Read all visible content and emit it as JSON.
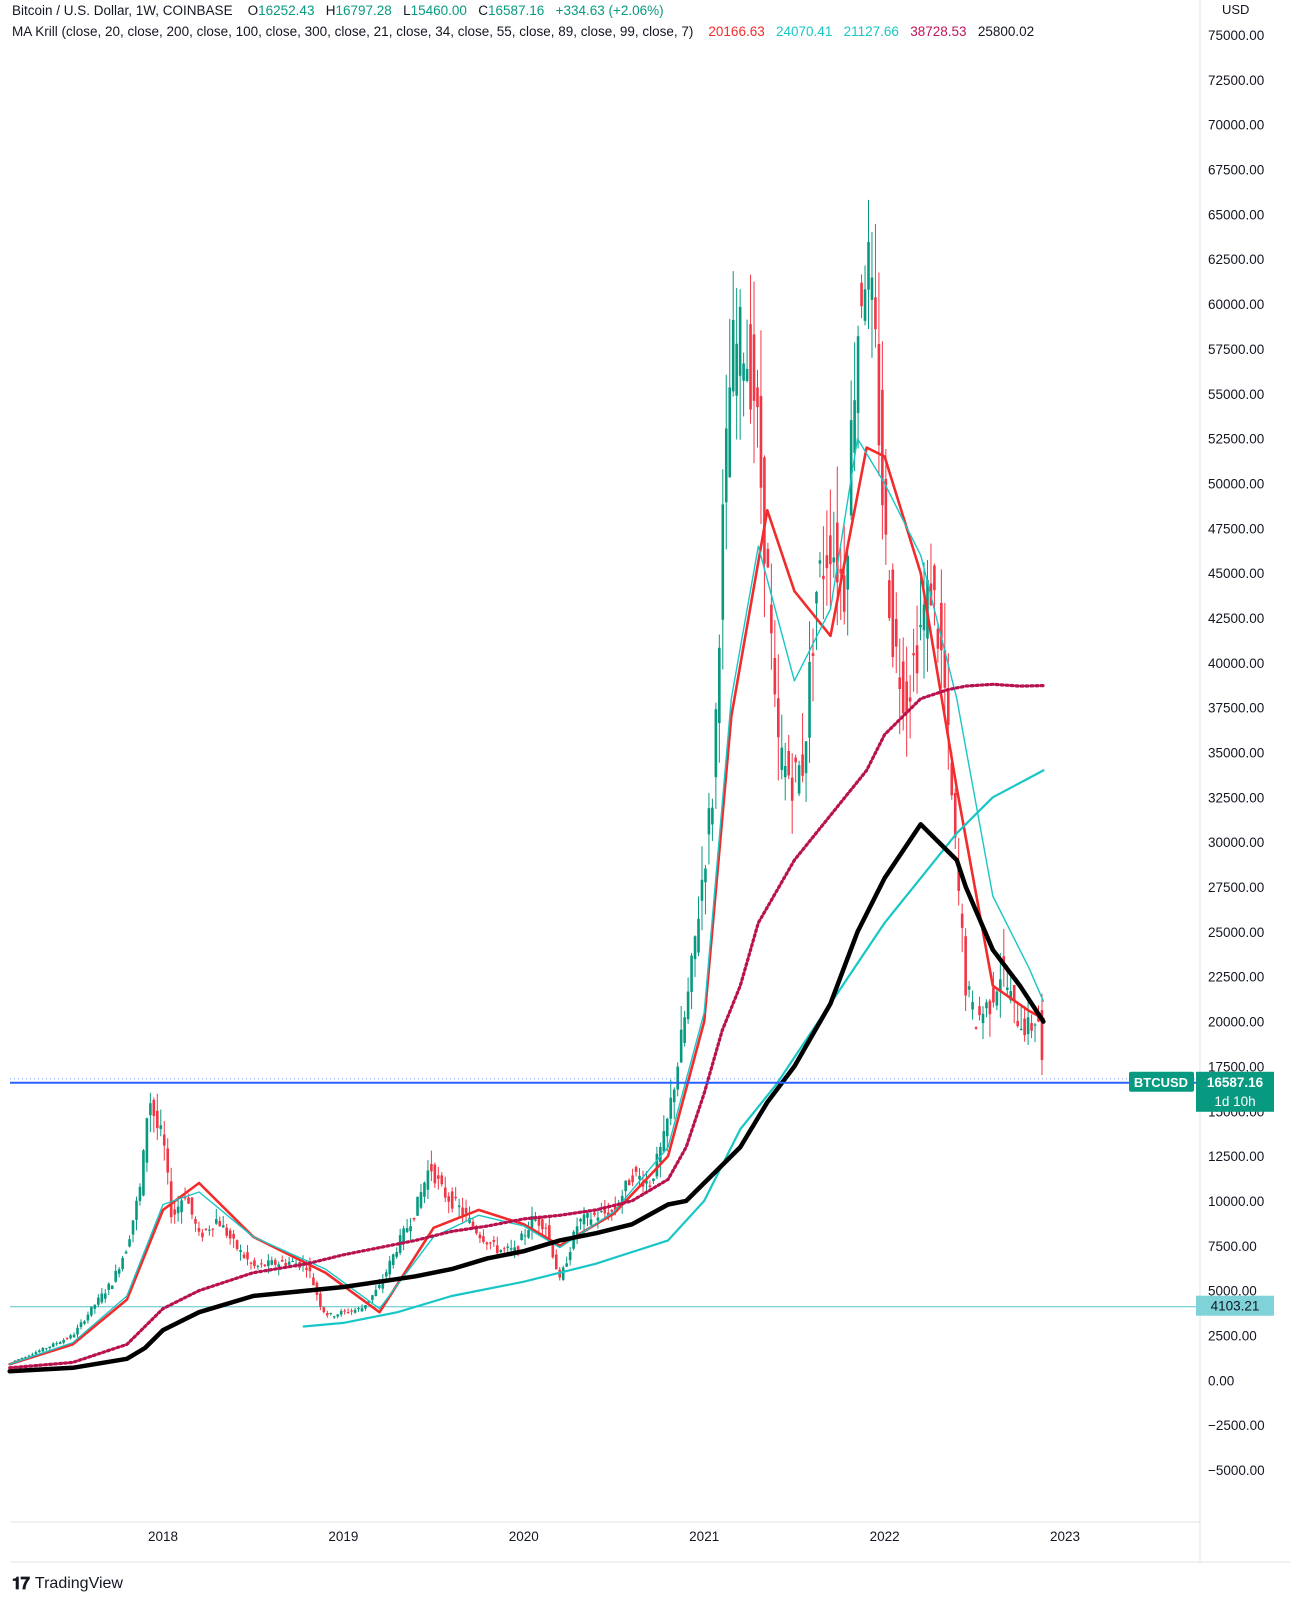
{
  "header": {
    "symbol": "Bitcoin / U.S. Dollar, 1W, COINBASE",
    "open_label": "O",
    "open": "16252.43",
    "high_label": "H",
    "high": "16797.28",
    "low_label": "L",
    "low": "15460.00",
    "close_label": "C",
    "close": "16587.16",
    "change": "+334.63 (+2.06%)",
    "indicator": "MA Krill (close, 20, close, 200, close, 100, close, 300, close, 21, close, 34, close, 55, close, 89, close, 99, close, 7)",
    "ind_values": [
      "20166.63",
      "24070.41",
      "21127.66",
      "38728.53",
      "25800.02"
    ]
  },
  "axis": {
    "unit": "USD",
    "ticks": [
      "75000.00",
      "72500.00",
      "70000.00",
      "67500.00",
      "65000.00",
      "62500.00",
      "60000.00",
      "57500.00",
      "55000.00",
      "52500.00",
      "50000.00",
      "47500.00",
      "45000.00",
      "42500.00",
      "40000.00",
      "37500.00",
      "35000.00",
      "32500.00",
      "30000.00",
      "27500.00",
      "25000.00",
      "22500.00",
      "20000.00",
      "17500.00",
      "15000.00",
      "12500.00",
      "10000.00",
      "7500.00",
      "5000.00",
      "2500.00",
      "0.00",
      "−2500.00",
      "−5000.00"
    ],
    "x_labels": [
      "2018",
      "2019",
      "2020",
      "2021",
      "2022",
      "2023"
    ]
  },
  "badges": {
    "price_symbol": "BTCUSD",
    "price_value": "16587.16",
    "countdown": "1d 10h",
    "hline_value": "4103.21"
  },
  "brand": {
    "name": "TradingView"
  },
  "colors": {
    "up": "#089981",
    "down": "#f23645",
    "ma_red": "#f22c2c",
    "ma_teal": "#19c6c6",
    "ma_mag": "#b8124f",
    "ma_black": "#000000",
    "price_line": "#2962ff",
    "hline": "#55c3c9"
  },
  "chart_data": {
    "type": "line",
    "title": "",
    "xlabel": "",
    "ylabel": "USD",
    "ylim": [
      -5000,
      75000
    ],
    "xlim": [
      2017.15,
      2023.55
    ],
    "grid": false,
    "series": [
      {
        "name": "BTCUSD",
        "x": [
          2017.18,
          2017.35,
          2017.5,
          2017.62,
          2017.72,
          2017.8,
          2017.88,
          2017.92,
          2017.97,
          2018.0,
          2018.05,
          2018.12,
          2018.2,
          2018.3,
          2018.4,
          2018.5,
          2018.6,
          2018.7,
          2018.8,
          2018.88,
          2018.92,
          2019.0,
          2019.1,
          2019.2,
          2019.3,
          2019.4,
          2019.48,
          2019.55,
          2019.65,
          2019.75,
          2019.85,
          2019.95,
          2020.05,
          2020.12,
          2020.2,
          2020.3,
          2020.4,
          2020.5,
          2020.6,
          2020.7,
          2020.78,
          2020.85,
          2020.92,
          2021.0,
          2021.05,
          2021.1,
          2021.15,
          2021.22,
          2021.28,
          2021.35,
          2021.4,
          2021.45,
          2021.5,
          2021.55,
          2021.62,
          2021.7,
          2021.78,
          2021.82,
          2021.86,
          2021.9,
          2021.95,
          2022.0,
          2022.05,
          2022.12,
          2022.2,
          2022.26,
          2022.33,
          2022.38,
          2022.45,
          2022.5,
          2022.58,
          2022.65,
          2022.72,
          2022.8,
          2022.85,
          2022.88
        ],
        "values": [
          1100,
          1800,
          2500,
          4200,
          5500,
          7500,
          11000,
          16000,
          14000,
          13500,
          9000,
          10500,
          8000,
          9000,
          7500,
          6300,
          6500,
          6600,
          6400,
          4000,
          3600,
          3800,
          4000,
          5200,
          7500,
          9500,
          12000,
          10500,
          9500,
          8200,
          7300,
          7200,
          9000,
          8700,
          5500,
          8800,
          9200,
          9400,
          11500,
          11000,
          13500,
          17500,
          22000,
          29000,
          33000,
          47000,
          57000,
          58000,
          55000,
          45000,
          35500,
          34000,
          33500,
          34500,
          44000,
          47000,
          44000,
          54000,
          60000,
          63000,
          57000,
          47000,
          41000,
          38000,
          42000,
          44500,
          39000,
          31000,
          22000,
          20000,
          21000,
          23000,
          20500,
          19500,
          20500,
          16587
        ]
      },
      {
        "name": "20",
        "x": [
          2017.15,
          2017.5,
          2017.8,
          2018.0,
          2018.2,
          2018.5,
          2018.9,
          2019.2,
          2019.5,
          2019.75,
          2020.0,
          2020.2,
          2020.5,
          2020.8,
          2021.0,
          2021.15,
          2021.35,
          2021.5,
          2021.7,
          2021.9,
          2022.0,
          2022.2,
          2022.4,
          2022.6,
          2022.8,
          2022.88
        ],
        "values": [
          900,
          2000,
          4500,
          9500,
          11000,
          8000,
          6000,
          3800,
          8500,
          9500,
          8700,
          7500,
          9300,
          12500,
          20000,
          37000,
          48500,
          44000,
          41500,
          52000,
          51500,
          45000,
          33000,
          22000,
          20600,
          20166
        ]
      },
      {
        "name": "21",
        "x": [
          2017.15,
          2017.5,
          2017.8,
          2018.0,
          2018.2,
          2018.5,
          2018.9,
          2019.2,
          2019.5,
          2019.75,
          2020.0,
          2020.2,
          2020.5,
          2020.8,
          2021.0,
          2021.15,
          2021.3,
          2021.5,
          2021.7,
          2021.85,
          2022.0,
          2022.2,
          2022.4,
          2022.6,
          2022.8,
          2022.88
        ],
        "values": [
          900,
          2100,
          4700,
          9800,
          10500,
          8000,
          6200,
          4000,
          8000,
          9200,
          8600,
          7400,
          9400,
          13000,
          20500,
          38000,
          46500,
          39000,
          43000,
          52500,
          50000,
          46000,
          38000,
          27000,
          23000,
          21127
        ]
      },
      {
        "name": "100",
        "x": [
          2018.78,
          2019.0,
          2019.3,
          2019.6,
          2020.0,
          2020.4,
          2020.8,
          2021.0,
          2021.2,
          2021.4,
          2021.6,
          2021.8,
          2022.0,
          2022.2,
          2022.4,
          2022.6,
          2022.88
        ],
        "values": [
          3000,
          3200,
          3800,
          4700,
          5500,
          6500,
          7800,
          10000,
          14000,
          16500,
          19500,
          22500,
          25500,
          28000,
          30500,
          32500,
          34000
        ]
      },
      {
        "name": "200",
        "x": [
          2017.15,
          2017.5,
          2017.8,
          2017.9,
          2018.0,
          2018.2,
          2018.5,
          2018.8,
          2019.0,
          2019.2,
          2019.4,
          2019.6,
          2019.8,
          2020.0,
          2020.2,
          2020.4,
          2020.6,
          2020.8,
          2020.9,
          2021.0,
          2021.2,
          2021.35,
          2021.5,
          2021.7,
          2021.85,
          2022.0,
          2022.2,
          2022.4,
          2022.45,
          2022.6,
          2022.75,
          2022.88
        ],
        "values": [
          500,
          700,
          1200,
          1800,
          2800,
          3800,
          4700,
          5000,
          5200,
          5500,
          5800,
          6200,
          6800,
          7200,
          7800,
          8200,
          8700,
          9800,
          10000,
          11000,
          13000,
          15500,
          17500,
          21000,
          25000,
          28000,
          31000,
          29000,
          27500,
          24000,
          22000,
          20000
        ]
      },
      {
        "name": "300",
        "x": [
          2017.15,
          2017.5,
          2017.8,
          2017.9,
          2018.0,
          2018.2,
          2018.5,
          2018.8,
          2019.0,
          2019.2,
          2019.4,
          2019.6,
          2019.8,
          2020.0,
          2020.2,
          2020.4,
          2020.6,
          2020.8,
          2020.9,
          2021.0,
          2021.1,
          2021.2,
          2021.3,
          2021.5,
          2021.7,
          2021.9,
          2022.0,
          2022.2,
          2022.35,
          2022.45,
          2022.6,
          2022.75,
          2022.88
        ],
        "values": [
          700,
          1000,
          2000,
          3000,
          4000,
          5000,
          6000,
          6500,
          7000,
          7400,
          7800,
          8300,
          8600,
          9000,
          9200,
          9500,
          10000,
          11200,
          13000,
          16000,
          19500,
          22000,
          25500,
          29000,
          31500,
          34000,
          36000,
          38000,
          38500,
          38700,
          38800,
          38700,
          38728
        ]
      }
    ]
  }
}
